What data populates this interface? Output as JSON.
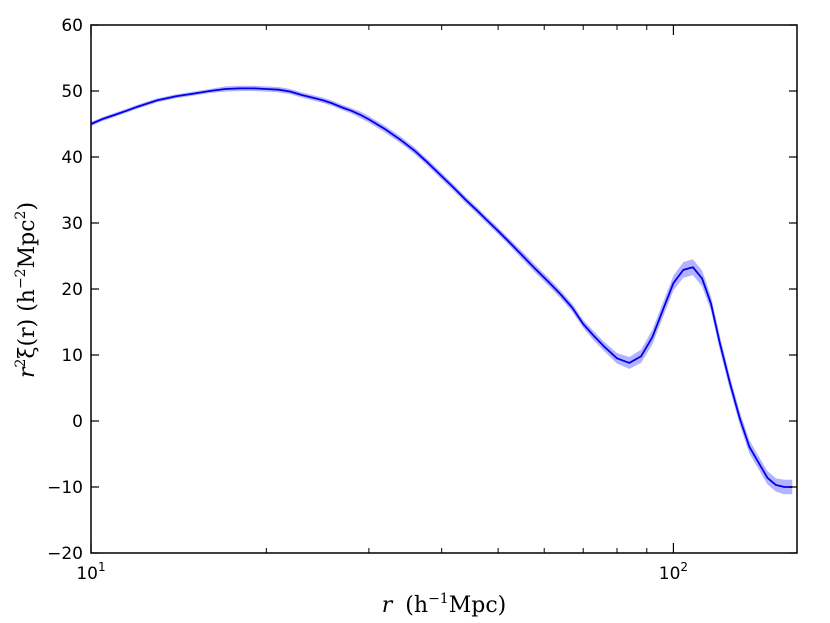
{
  "chart_data": {
    "type": "line",
    "title": "",
    "xlabel_parts": {
      "var": "r",
      "open": "(h",
      "exp": "−1",
      "unit": "Mpc)"
    },
    "ylabel_parts": {
      "var": "r",
      "exp1": "2",
      "mid": "ξ(r) (h",
      "exp2": "−2",
      "unit": "Mpc",
      "exp3": "2",
      "close": ")"
    },
    "xscale": "log",
    "xlim": [
      10,
      163
    ],
    "ylim": [
      -20,
      60
    ],
    "grid": false,
    "legend": "none",
    "colors": {
      "line": "#0000ee",
      "band": "#9999ff"
    },
    "x_ticks": [
      {
        "value": 10,
        "base": "10",
        "exp": "1"
      },
      {
        "value": 100,
        "base": "10",
        "exp": "2"
      }
    ],
    "y_ticks": [
      {
        "value": -20,
        "label": "−20"
      },
      {
        "value": -10,
        "label": "−10"
      },
      {
        "value": 0,
        "label": "0"
      },
      {
        "value": 10,
        "label": "10"
      },
      {
        "value": 20,
        "label": "20"
      },
      {
        "value": 30,
        "label": "30"
      },
      {
        "value": 40,
        "label": "40"
      },
      {
        "value": 50,
        "label": "50"
      },
      {
        "value": 60,
        "label": "60"
      }
    ],
    "series": [
      {
        "x": [
          10.0,
          10.5,
          11.0,
          11.5,
          12.0,
          12.5,
          13.0,
          13.5,
          14.0,
          15.0,
          16.0,
          17.0,
          18.0,
          19.0,
          20.0,
          21.0,
          22.0,
          23.0,
          24.0,
          25.0,
          26.0,
          27.0,
          28.0,
          29.0,
          30.0,
          32.0,
          34.0,
          36.0,
          38.0,
          40.0,
          42.0,
          44.0,
          46.0,
          48.0,
          50.0,
          52.0,
          55.0,
          58.0,
          61.0,
          64.0,
          67.0,
          70.0,
          73.0,
          76.0,
          80.0,
          84.0,
          88.0,
          92.0,
          96.0,
          100.0,
          104.0,
          108.0,
          112.0,
          116.0,
          120.0,
          125.0,
          130.0,
          135.0,
          140.0,
          145.0,
          150.0,
          155.0,
          160.0
        ],
        "y": [
          45.0,
          45.8,
          46.4,
          47.0,
          47.6,
          48.1,
          48.6,
          48.9,
          49.2,
          49.6,
          50.0,
          50.3,
          50.4,
          50.4,
          50.3,
          50.2,
          49.9,
          49.4,
          49.0,
          48.6,
          48.1,
          47.5,
          47.0,
          46.4,
          45.7,
          44.2,
          42.6,
          40.9,
          39.0,
          37.1,
          35.3,
          33.5,
          31.9,
          30.3,
          28.8,
          27.3,
          25.1,
          23.0,
          21.1,
          19.2,
          17.2,
          14.7,
          12.9,
          11.3,
          9.5,
          8.8,
          9.8,
          12.7,
          16.9,
          20.9,
          22.9,
          23.3,
          21.6,
          17.8,
          12.0,
          5.8,
          0.4,
          -3.9,
          -6.3,
          -8.6,
          -9.7,
          -10.0,
          -10.0
        ],
        "err": [
          0.3,
          0.3,
          0.3,
          0.3,
          0.3,
          0.3,
          0.3,
          0.3,
          0.3,
          0.3,
          0.3,
          0.4,
          0.4,
          0.4,
          0.4,
          0.4,
          0.4,
          0.4,
          0.4,
          0.4,
          0.4,
          0.4,
          0.4,
          0.5,
          0.5,
          0.5,
          0.5,
          0.5,
          0.5,
          0.5,
          0.5,
          0.5,
          0.5,
          0.5,
          0.5,
          0.5,
          0.6,
          0.6,
          0.6,
          0.6,
          0.6,
          0.6,
          0.7,
          0.7,
          0.8,
          0.9,
          1.0,
          1.1,
          1.1,
          1.1,
          1.2,
          1.2,
          1.2,
          1.1,
          1.1,
          1.0,
          1.0,
          1.0,
          1.0,
          1.0,
          1.0,
          1.1,
          1.1
        ]
      }
    ]
  }
}
